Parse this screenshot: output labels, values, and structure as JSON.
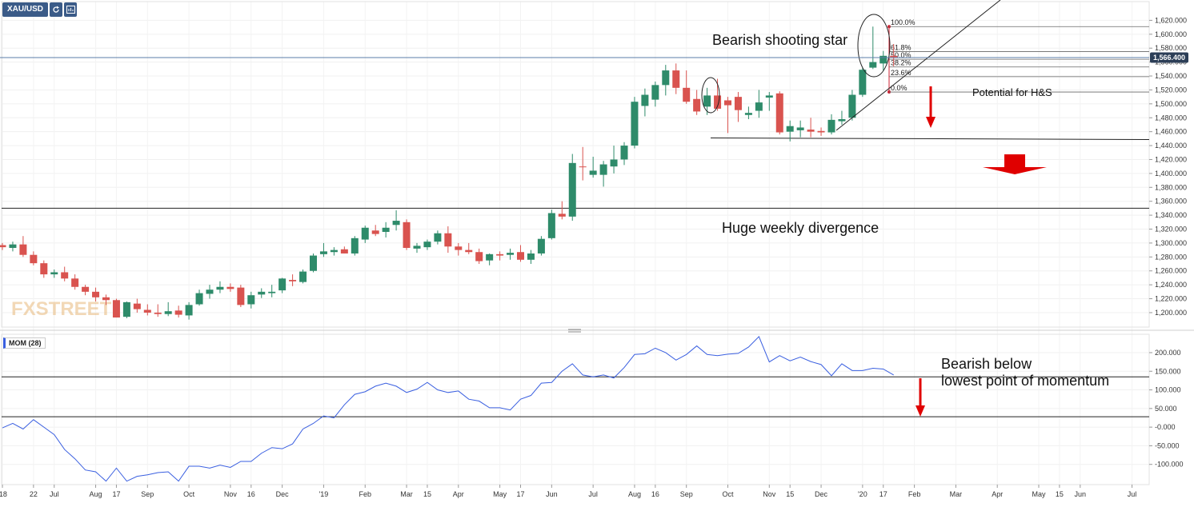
{
  "colors": {
    "up": "#2e8b6a",
    "down": "#d9534f",
    "momentum": "#3a5fe0",
    "price_line": "#5b7da8",
    "price_tag_bg": "#2c3e57",
    "arrow": "#e00000"
  },
  "header": {
    "symbol": "XAU/USD",
    "refresh_icon": "refresh-icon",
    "data_icon": "data-window-icon"
  },
  "watermark": {
    "text": "FXSTREET"
  },
  "annotations": {
    "shooting_star": "Bearish shooting star",
    "hs": "Potential for H&S",
    "divergence": "Huge weekly divergence",
    "momentum_line1": "Bearish below",
    "momentum_line2": "lowest point of momentum"
  },
  "chart_data": [
    {
      "type": "candlestick",
      "series_name": "XAU/USD",
      "ylim": [
        1185,
        1640
      ],
      "y_ticks": [
        1200,
        1220,
        1240,
        1260,
        1280,
        1300,
        1320,
        1340,
        1360,
        1380,
        1400,
        1420,
        1440,
        1460,
        1480,
        1500,
        1520,
        1540,
        1560,
        1580,
        1600,
        1620
      ],
      "y_tick_labels": [
        "1,200.000",
        "1,220.000",
        "1,240.000",
        "1,260.000",
        "1,280.000",
        "1,300.000",
        "1,320.000",
        "1,340.000",
        "1,360.000",
        "1,380.000",
        "1,400.000",
        "1,420.000",
        "1,440.000",
        "1,460.000",
        "1,480.000",
        "1,500.000",
        "1,520.000",
        "1,540.000",
        "1,560.000",
        "1,580.000",
        "1,600.000",
        "1,620.000"
      ],
      "current_price": 1566.4,
      "current_price_label": "1,566.400",
      "horizontal_lines": [
        1350,
        1451
      ],
      "fibonacci": {
        "high": 1611,
        "low": 1517,
        "levels": [
          {
            "label": "100.0%",
            "value": 1611
          },
          {
            "label": "61.8%",
            "value": 1575
          },
          {
            "label": "50.0%",
            "value": 1564
          },
          {
            "label": "38.2%",
            "value": 1553
          },
          {
            "label": "23.6%",
            "value": 1539
          },
          {
            "label": "0.0%",
            "value": 1517
          }
        ]
      },
      "candles": [
        {
          "o": 1297,
          "h": 1300,
          "l": 1290,
          "c": 1294
        },
        {
          "o": 1293,
          "h": 1302,
          "l": 1288,
          "c": 1298
        },
        {
          "o": 1298,
          "h": 1310,
          "l": 1280,
          "c": 1283
        },
        {
          "o": 1283,
          "h": 1288,
          "l": 1268,
          "c": 1271
        },
        {
          "o": 1271,
          "h": 1275,
          "l": 1250,
          "c": 1255
        },
        {
          "o": 1255,
          "h": 1262,
          "l": 1250,
          "c": 1258
        },
        {
          "o": 1258,
          "h": 1266,
          "l": 1245,
          "c": 1249
        },
        {
          "o": 1249,
          "h": 1255,
          "l": 1233,
          "c": 1237
        },
        {
          "o": 1237,
          "h": 1240,
          "l": 1225,
          "c": 1230
        },
        {
          "o": 1230,
          "h": 1236,
          "l": 1216,
          "c": 1222
        },
        {
          "o": 1222,
          "h": 1226,
          "l": 1211,
          "c": 1218
        },
        {
          "o": 1218,
          "h": 1220,
          "l": 1193,
          "c": 1193
        },
        {
          "o": 1194,
          "h": 1216,
          "l": 1192,
          "c": 1215
        },
        {
          "o": 1213,
          "h": 1220,
          "l": 1200,
          "c": 1205
        },
        {
          "o": 1204,
          "h": 1212,
          "l": 1196,
          "c": 1200
        },
        {
          "o": 1200,
          "h": 1212,
          "l": 1194,
          "c": 1198
        },
        {
          "o": 1198,
          "h": 1215,
          "l": 1195,
          "c": 1202
        },
        {
          "o": 1203,
          "h": 1210,
          "l": 1193,
          "c": 1197
        },
        {
          "o": 1196,
          "h": 1215,
          "l": 1190,
          "c": 1211
        },
        {
          "o": 1212,
          "h": 1233,
          "l": 1210,
          "c": 1228
        },
        {
          "o": 1227,
          "h": 1240,
          "l": 1220,
          "c": 1233
        },
        {
          "o": 1233,
          "h": 1245,
          "l": 1228,
          "c": 1237
        },
        {
          "o": 1237,
          "h": 1242,
          "l": 1230,
          "c": 1234
        },
        {
          "o": 1236,
          "h": 1240,
          "l": 1208,
          "c": 1211
        },
        {
          "o": 1212,
          "h": 1230,
          "l": 1206,
          "c": 1225
        },
        {
          "o": 1226,
          "h": 1235,
          "l": 1221,
          "c": 1230
        },
        {
          "o": 1228,
          "h": 1240,
          "l": 1222,
          "c": 1230
        },
        {
          "o": 1232,
          "h": 1250,
          "l": 1228,
          "c": 1249
        },
        {
          "o": 1247,
          "h": 1255,
          "l": 1238,
          "c": 1245
        },
        {
          "o": 1244,
          "h": 1262,
          "l": 1242,
          "c": 1259
        },
        {
          "o": 1260,
          "h": 1285,
          "l": 1258,
          "c": 1282
        },
        {
          "o": 1284,
          "h": 1300,
          "l": 1280,
          "c": 1288
        },
        {
          "o": 1287,
          "h": 1294,
          "l": 1282,
          "c": 1290
        },
        {
          "o": 1291,
          "h": 1295,
          "l": 1285,
          "c": 1285
        },
        {
          "o": 1285,
          "h": 1310,
          "l": 1282,
          "c": 1307
        },
        {
          "o": 1305,
          "h": 1325,
          "l": 1300,
          "c": 1322
        },
        {
          "o": 1318,
          "h": 1326,
          "l": 1310,
          "c": 1313
        },
        {
          "o": 1316,
          "h": 1330,
          "l": 1308,
          "c": 1322
        },
        {
          "o": 1326,
          "h": 1347,
          "l": 1318,
          "c": 1332
        },
        {
          "o": 1330,
          "h": 1334,
          "l": 1290,
          "c": 1293
        },
        {
          "o": 1292,
          "h": 1300,
          "l": 1286,
          "c": 1296
        },
        {
          "o": 1294,
          "h": 1305,
          "l": 1290,
          "c": 1302
        },
        {
          "o": 1302,
          "h": 1318,
          "l": 1298,
          "c": 1314
        },
        {
          "o": 1314,
          "h": 1324,
          "l": 1286,
          "c": 1295
        },
        {
          "o": 1295,
          "h": 1300,
          "l": 1282,
          "c": 1290
        },
        {
          "o": 1290,
          "h": 1300,
          "l": 1284,
          "c": 1287
        },
        {
          "o": 1287,
          "h": 1292,
          "l": 1270,
          "c": 1274
        },
        {
          "o": 1275,
          "h": 1285,
          "l": 1268,
          "c": 1284
        },
        {
          "o": 1284,
          "h": 1288,
          "l": 1275,
          "c": 1282
        },
        {
          "o": 1283,
          "h": 1292,
          "l": 1276,
          "c": 1286
        },
        {
          "o": 1287,
          "h": 1297,
          "l": 1273,
          "c": 1276
        },
        {
          "o": 1276,
          "h": 1290,
          "l": 1270,
          "c": 1285
        },
        {
          "o": 1285,
          "h": 1310,
          "l": 1282,
          "c": 1306
        },
        {
          "o": 1307,
          "h": 1348,
          "l": 1305,
          "c": 1343
        },
        {
          "o": 1342,
          "h": 1360,
          "l": 1334,
          "c": 1338
        },
        {
          "o": 1338,
          "h": 1428,
          "l": 1332,
          "c": 1415
        },
        {
          "o": 1410,
          "h": 1438,
          "l": 1390,
          "c": 1409
        },
        {
          "o": 1398,
          "h": 1424,
          "l": 1394,
          "c": 1404
        },
        {
          "o": 1398,
          "h": 1418,
          "l": 1381,
          "c": 1413
        },
        {
          "o": 1410,
          "h": 1440,
          "l": 1400,
          "c": 1420
        },
        {
          "o": 1420,
          "h": 1445,
          "l": 1412,
          "c": 1440
        },
        {
          "o": 1440,
          "h": 1510,
          "l": 1436,
          "c": 1503
        },
        {
          "o": 1497,
          "h": 1522,
          "l": 1482,
          "c": 1513
        },
        {
          "o": 1506,
          "h": 1532,
          "l": 1496,
          "c": 1527
        },
        {
          "o": 1527,
          "h": 1556,
          "l": 1512,
          "c": 1548
        },
        {
          "o": 1548,
          "h": 1558,
          "l": 1514,
          "c": 1523
        },
        {
          "o": 1523,
          "h": 1548,
          "l": 1500,
          "c": 1503
        },
        {
          "o": 1507,
          "h": 1520,
          "l": 1484,
          "c": 1489
        },
        {
          "o": 1496,
          "h": 1523,
          "l": 1484,
          "c": 1512
        },
        {
          "o": 1512,
          "h": 1536,
          "l": 1490,
          "c": 1493
        },
        {
          "o": 1505,
          "h": 1510,
          "l": 1458,
          "c": 1498
        },
        {
          "o": 1510,
          "h": 1517,
          "l": 1474,
          "c": 1491
        },
        {
          "o": 1484,
          "h": 1496,
          "l": 1478,
          "c": 1487
        },
        {
          "o": 1490,
          "h": 1520,
          "l": 1480,
          "c": 1502
        },
        {
          "o": 1509,
          "h": 1517,
          "l": 1490,
          "c": 1512
        },
        {
          "o": 1515,
          "h": 1518,
          "l": 1456,
          "c": 1459
        },
        {
          "o": 1460,
          "h": 1476,
          "l": 1446,
          "c": 1468
        },
        {
          "o": 1462,
          "h": 1476,
          "l": 1452,
          "c": 1466
        },
        {
          "o": 1463,
          "h": 1480,
          "l": 1452,
          "c": 1460
        },
        {
          "o": 1461,
          "h": 1466,
          "l": 1454,
          "c": 1459
        },
        {
          "o": 1459,
          "h": 1485,
          "l": 1456,
          "c": 1477
        },
        {
          "o": 1475,
          "h": 1490,
          "l": 1470,
          "c": 1478
        },
        {
          "o": 1480,
          "h": 1520,
          "l": 1476,
          "c": 1513
        },
        {
          "o": 1513,
          "h": 1552,
          "l": 1510,
          "c": 1549
        },
        {
          "o": 1552,
          "h": 1611,
          "l": 1550,
          "c": 1560
        },
        {
          "o": 1558,
          "h": 1576,
          "l": 1548,
          "c": 1569
        },
        {
          "o": 1569,
          "h": 1586,
          "l": 1554,
          "c": 1566
        }
      ]
    },
    {
      "type": "line",
      "series_name": "MOM (28)",
      "ylim": [
        -150,
        245
      ],
      "y_ticks": [
        200,
        150,
        100,
        50,
        0,
        -50,
        -100
      ],
      "y_tick_labels": [
        "200.000",
        "150.000",
        "100.000",
        "50.000",
        "-0.000",
        "-50.000",
        "-100.000"
      ],
      "horizontal_lines": [
        135,
        28
      ],
      "values": [
        -2,
        10,
        -5,
        20,
        0,
        -20,
        -60,
        -85,
        -115,
        -120,
        -145,
        -110,
        -145,
        -132,
        -128,
        -122,
        -120,
        -145,
        -105,
        -105,
        -110,
        -102,
        -108,
        -92,
        -92,
        -70,
        -55,
        -58,
        -45,
        -5,
        10,
        30,
        25,
        60,
        88,
        95,
        110,
        118,
        110,
        93,
        102,
        120,
        100,
        93,
        97,
        75,
        70,
        52,
        52,
        46,
        75,
        85,
        118,
        120,
        150,
        170,
        140,
        135,
        140,
        132,
        160,
        195,
        197,
        212,
        200,
        180,
        195,
        218,
        195,
        192,
        196,
        198,
        215,
        243,
        175,
        192,
        178,
        188,
        176,
        168,
        138,
        170,
        152,
        152,
        158,
        156,
        140
      ],
      "x_tick_labels": [
        {
          "i": 0,
          "t": "'18"
        },
        {
          "i": 3,
          "t": "22"
        },
        {
          "i": 5,
          "t": "Jul"
        },
        {
          "i": 9,
          "t": "Aug"
        },
        {
          "i": 11,
          "t": "17"
        },
        {
          "i": 14,
          "t": "Sep"
        },
        {
          "i": 18,
          "t": "Oct"
        },
        {
          "i": 22,
          "t": "Nov"
        },
        {
          "i": 24,
          "t": "16"
        },
        {
          "i": 27,
          "t": "Dec"
        },
        {
          "i": 31,
          "t": "'19"
        },
        {
          "i": 35,
          "t": "Feb"
        },
        {
          "i": 39,
          "t": "Mar"
        },
        {
          "i": 41,
          "t": "15"
        },
        {
          "i": 44,
          "t": "Apr"
        },
        {
          "i": 48,
          "t": "May"
        },
        {
          "i": 50,
          "t": "17"
        },
        {
          "i": 53,
          "t": "Jun"
        },
        {
          "i": 57,
          "t": "Jul"
        },
        {
          "i": 61,
          "t": "Aug"
        },
        {
          "i": 63,
          "t": "16"
        },
        {
          "i": 66,
          "t": "Sep"
        },
        {
          "i": 70,
          "t": "Oct"
        },
        {
          "i": 74,
          "t": "Nov"
        },
        {
          "i": 76,
          "t": "15"
        },
        {
          "i": 79,
          "t": "Dec"
        },
        {
          "i": 83,
          "t": "'20"
        },
        {
          "i": 85,
          "t": "17"
        },
        {
          "i": 88,
          "t": "Feb"
        },
        {
          "i": 92,
          "t": "Mar"
        },
        {
          "i": 96,
          "t": "Apr"
        },
        {
          "i": 100,
          "t": "May"
        },
        {
          "i": 102,
          "t": "15"
        },
        {
          "i": 104,
          "t": "Jun"
        },
        {
          "i": 109,
          "t": "Jul"
        }
      ]
    }
  ]
}
